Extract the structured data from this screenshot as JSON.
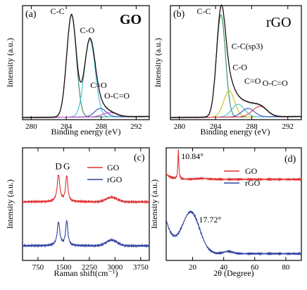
{
  "chart_data": [
    {
      "id": "a",
      "type": "line",
      "panel_label": "(a)",
      "title": "GO",
      "xlabel": "Binding energy (eV)",
      "ylabel": "Intensity (a.u.)",
      "xlim": [
        279,
        293.5
      ],
      "ylim": [
        0,
        1.08
      ],
      "x_ticks": [
        280,
        284,
        288,
        292
      ],
      "grid": false,
      "peaks": [
        {
          "label": "C-C",
          "center": 284.6,
          "height": 0.97,
          "width": 0.55,
          "color": "#2e8b57"
        },
        {
          "label": "C-O",
          "center": 286.7,
          "height": 0.73,
          "width": 0.62,
          "color": "#40c0d0"
        },
        {
          "label": "C=O",
          "center": 287.9,
          "height": 0.08,
          "width": 0.65,
          "color": "#3050c0"
        },
        {
          "label": "O-C=O",
          "center": 289.0,
          "height": 0.04,
          "width": 0.8,
          "color": "#c040c0"
        }
      ],
      "annotations": [
        {
          "text": "C-C",
          "x": 283.0,
          "y": 1.0
        },
        {
          "text": "C-O",
          "x": 286.4,
          "y": 0.82
        },
        {
          "text": "C=O",
          "x": 287.7,
          "y": 0.3
        },
        {
          "text": "O-C=O",
          "x": 289.8,
          "y": 0.2
        }
      ]
    },
    {
      "id": "b",
      "type": "line",
      "panel_label": "(b)",
      "title": "rGO",
      "xlabel": "Binding energy (eV)",
      "ylabel": "Intensity (a.u.)",
      "xlim": [
        279,
        293.5
      ],
      "ylim": [
        0,
        1.08
      ],
      "x_ticks": [
        280,
        284,
        288,
        292
      ],
      "grid": false,
      "peaks": [
        {
          "label": "C-C",
          "center": 284.6,
          "height": 0.97,
          "width": 0.5,
          "color": "#2e8b57"
        },
        {
          "label": "C-C(sp3)",
          "center": 285.5,
          "height": 0.25,
          "width": 0.6,
          "color": "#c8c020"
        },
        {
          "label": "C-O",
          "center": 286.5,
          "height": 0.12,
          "width": 0.7,
          "color": "#40c0d0"
        },
        {
          "label": "C=O",
          "center": 287.6,
          "height": 0.08,
          "width": 0.7,
          "color": "#3050c0"
        },
        {
          "label": "O-C=O",
          "center": 288.9,
          "height": 0.1,
          "width": 0.8,
          "color": "#e04050"
        }
      ],
      "annotations": [
        {
          "text": "C-C",
          "x": 282.7,
          "y": 1.0
        },
        {
          "text": "C-C(sp3)",
          "x": 287.5,
          "y": 0.67
        },
        {
          "text": "C-O",
          "x": 286.7,
          "y": 0.47
        },
        {
          "text": "C=O",
          "x": 288.1,
          "y": 0.34
        },
        {
          "text": "O-C=O",
          "x": 290.6,
          "y": 0.32
        }
      ]
    },
    {
      "id": "c",
      "type": "line",
      "panel_label": "(c)",
      "xlabel": "Raman shift(cm⁻¹)",
      "ylabel": "Intensity (a.u.)",
      "xlim": [
        300,
        4000
      ],
      "ylim": [
        0,
        1
      ],
      "x_ticks": [
        750,
        1500,
        2250,
        3000,
        3750
      ],
      "grid": false,
      "legend": "top-right",
      "series": [
        {
          "name": "GO",
          "color": "#e03030",
          "baseline": 0.52,
          "D_height": 0.24,
          "G_height": 0.23,
          "twoD_height": 0.04
        },
        {
          "name": "rGO",
          "color": "#3040a0",
          "baseline": 0.13,
          "D_height": 0.21,
          "G_height": 0.22,
          "twoD_height": 0.05
        }
      ],
      "peak_labels": [
        {
          "text": "D",
          "x": 1350
        },
        {
          "text": "G",
          "x": 1590
        }
      ]
    },
    {
      "id": "d",
      "type": "line",
      "panel_label": "(d)",
      "xlabel": "2θ (Degree)",
      "ylabel": "Intensity (a.u.)",
      "xlim": [
        3,
        90
      ],
      "ylim": [
        0,
        1
      ],
      "x_ticks": [
        20,
        40,
        60,
        80
      ],
      "grid": false,
      "legend": "top-right",
      "series": [
        {
          "name": "GO",
          "color": "#e03030"
        },
        {
          "name": "rGO",
          "color": "#3040a0"
        }
      ],
      "annotations": [
        {
          "text": "10.84°",
          "x": 10.84
        },
        {
          "text": "17.72°",
          "x": 17.72
        }
      ]
    }
  ]
}
